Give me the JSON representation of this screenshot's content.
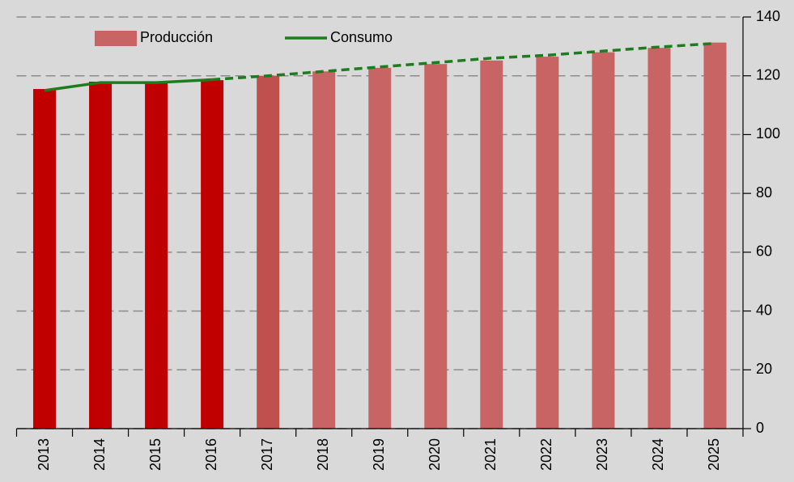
{
  "chart_data": {
    "type": "bar_line",
    "categories": [
      "2013",
      "2014",
      "2015",
      "2016",
      "2017",
      "2018",
      "2019",
      "2020",
      "2021",
      "2022",
      "2023",
      "2024",
      "2025"
    ],
    "series": [
      {
        "name": "Producción",
        "type": "bar",
        "color": "#c86463",
        "colors": [
          "#c00000",
          "#c00000",
          "#c00000",
          "#c00000",
          "#c0504d",
          "#c86463",
          "#c86463",
          "#c86463",
          "#c86463",
          "#c86463",
          "#c86463",
          "#c86463",
          "#c86463"
        ],
        "values": [
          115.5,
          118,
          117.5,
          118.5,
          120,
          121.5,
          122.7,
          124,
          125.2,
          126.5,
          128,
          129.5,
          131.3
        ]
      },
      {
        "name": "Consumo",
        "type": "line",
        "color": "#1e7b1e",
        "segment_styles": [
          "solid",
          "solid",
          "solid",
          "dashed",
          "dashed",
          "dashed",
          "dashed",
          "dashed",
          "dashed",
          "dashed",
          "dashed",
          "dashed"
        ],
        "values": [
          115,
          117.7,
          117.7,
          118.7,
          120,
          121.5,
          123,
          124.5,
          126,
          127,
          128.4,
          129.8,
          131
        ]
      }
    ],
    "ylim": [
      0,
      140
    ],
    "yticks": [
      0,
      20,
      40,
      60,
      80,
      100,
      120,
      140
    ],
    "grid": true,
    "y_axis_side": "right"
  }
}
